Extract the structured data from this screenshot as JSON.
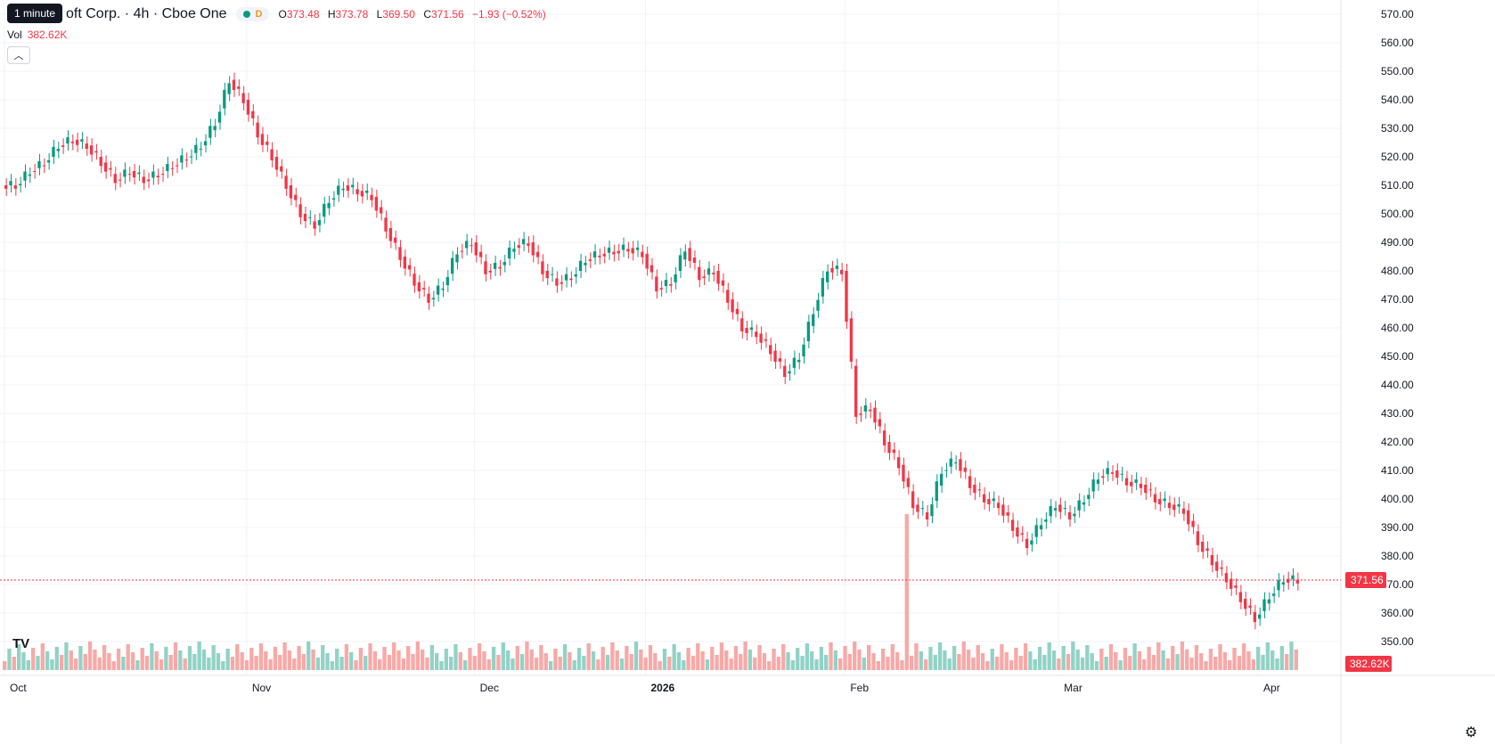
{
  "legend": {
    "symbol": "oft Corp. · 4h · Cboe One",
    "open_label": "O",
    "open": "373.48",
    "high_label": "H",
    "high": "373.78",
    "low_label": "L",
    "low": "369.50",
    "close_label": "C",
    "close": "371.56",
    "change": "−1.93 (−0.52%)",
    "d_badge": "D"
  },
  "tooltip": {
    "text": "1 minute"
  },
  "volume": {
    "label": "Vol",
    "value": "382.62K"
  },
  "price_tag": "371.56",
  "volume_tag": "382.62K",
  "icons": {
    "collapse": "chevron-up-icon",
    "logo": "tradingview-logo-icon",
    "settings": "gear-icon"
  },
  "colors": {
    "up": "#089981",
    "down": "#f23645",
    "up_vol": "#92d2c6",
    "down_vol": "#f7a9a7"
  },
  "chart_data": {
    "type": "candlestick",
    "timeframe": "4h",
    "ylim": [
      340,
      575
    ],
    "y_ticks": [
      350,
      360,
      370,
      380,
      390,
      400,
      410,
      420,
      430,
      440,
      450,
      460,
      470,
      480,
      490,
      500,
      510,
      520,
      530,
      540,
      550,
      560,
      570
    ],
    "x_ticks": [
      "Oct",
      "Nov",
      "Dec",
      "2026",
      "Feb",
      "Mar",
      "Apr"
    ],
    "last_price": 371.56,
    "last_volume": "382.62K",
    "close_path": [
      [
        "Oct",
        510
      ],
      [
        "Oct",
        515
      ],
      [
        "Oct",
        518
      ],
      [
        "Oct",
        524
      ],
      [
        "Oct",
        526
      ],
      [
        "Oct",
        524
      ],
      [
        "Oct",
        518
      ],
      [
        "Oct",
        512
      ],
      [
        "Oct",
        515
      ],
      [
        "Oct",
        512
      ],
      [
        "Oct",
        514
      ],
      [
        "Oct",
        517
      ],
      [
        "Oct",
        520
      ],
      [
        "Oct",
        524
      ],
      [
        "Oct",
        532
      ],
      [
        "Oct",
        547
      ],
      [
        "Oct",
        540
      ],
      [
        "Nov",
        528
      ],
      [
        "Nov",
        520
      ],
      [
        "Nov",
        510
      ],
      [
        "Nov",
        500
      ],
      [
        "Nov",
        496
      ],
      [
        "Nov",
        505
      ],
      [
        "Nov",
        510
      ],
      [
        "Nov",
        508
      ],
      [
        "Nov",
        506
      ],
      [
        "Nov",
        495
      ],
      [
        "Nov",
        485
      ],
      [
        "Nov",
        476
      ],
      [
        "Nov",
        470
      ],
      [
        "Nov",
        475
      ],
      [
        "Nov",
        487
      ],
      [
        "Nov",
        490
      ],
      [
        "Dec",
        480
      ],
      [
        "Dec",
        482
      ],
      [
        "Dec",
        489
      ],
      [
        "Dec",
        490
      ],
      [
        "Dec",
        480
      ],
      [
        "Dec",
        476
      ],
      [
        "Dec",
        478
      ],
      [
        "Dec",
        484
      ],
      [
        "Dec",
        486
      ],
      [
        "Dec",
        487
      ],
      [
        "Dec",
        488
      ],
      [
        "Dec",
        486
      ],
      [
        "2026",
        474
      ],
      [
        "2026",
        476
      ],
      [
        "2026",
        488
      ],
      [
        "2026",
        478
      ],
      [
        "2026",
        480
      ],
      [
        "2026",
        470
      ],
      [
        "2026",
        460
      ],
      [
        "2026",
        458
      ],
      [
        "2026",
        452
      ],
      [
        "2026",
        444
      ],
      [
        "2026",
        450
      ],
      [
        "2026",
        466
      ],
      [
        "2026",
        481
      ],
      [
        "2026",
        480
      ],
      [
        "Feb",
        430
      ],
      [
        "Feb",
        432
      ],
      [
        "Feb",
        420
      ],
      [
        "Feb",
        412
      ],
      [
        "Feb",
        398
      ],
      [
        "Feb",
        394
      ],
      [
        "Feb",
        410
      ],
      [
        "Feb",
        414
      ],
      [
        "Feb",
        405
      ],
      [
        "Feb",
        400
      ],
      [
        "Feb",
        398
      ],
      [
        "Feb",
        390
      ],
      [
        "Feb",
        384
      ],
      [
        "Feb",
        392
      ],
      [
        "Feb",
        398
      ],
      [
        "Mar",
        394
      ],
      [
        "Mar",
        400
      ],
      [
        "Mar",
        408
      ],
      [
        "Mar",
        410
      ],
      [
        "Mar",
        406
      ],
      [
        "Mar",
        405
      ],
      [
        "Mar",
        400
      ],
      [
        "Mar",
        398
      ],
      [
        "Mar",
        396
      ],
      [
        "Mar",
        385
      ],
      [
        "Mar",
        378
      ],
      [
        "Mar",
        372
      ],
      [
        "Mar",
        365
      ],
      [
        "Mar",
        358
      ],
      [
        "Apr",
        366
      ],
      [
        "Apr",
        372
      ],
      [
        "Apr",
        371.56
      ]
    ]
  }
}
